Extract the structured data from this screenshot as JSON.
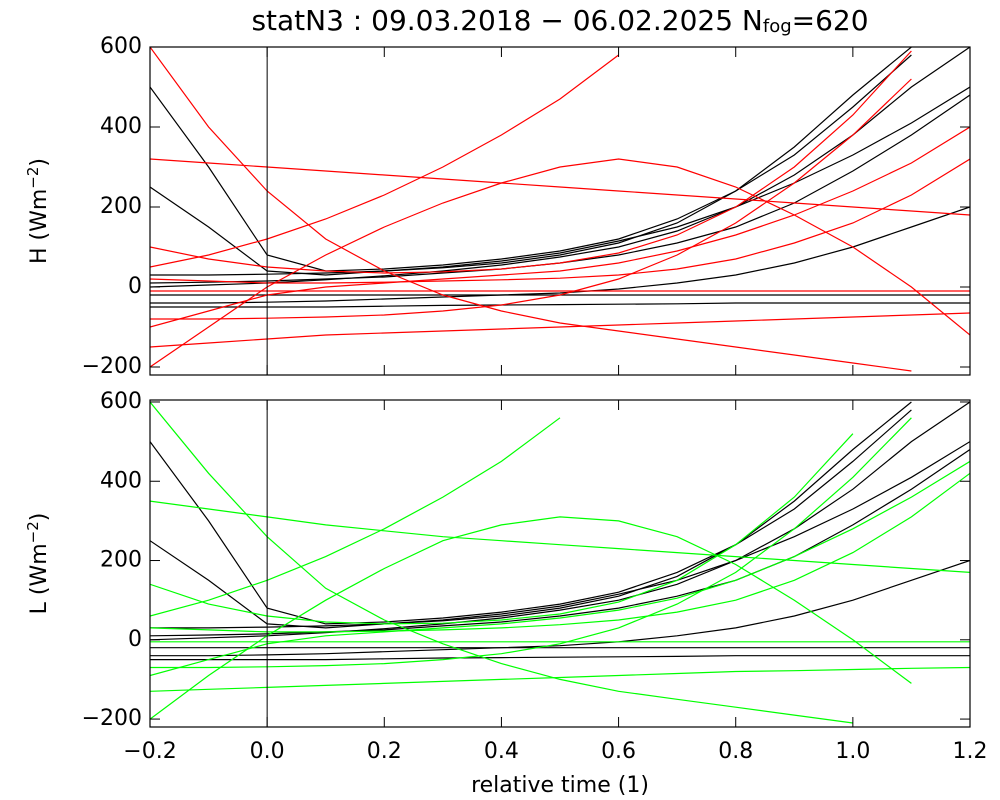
{
  "title": {
    "text": "statN3 : 09.03.2018 − 06.02.2025 N",
    "sub": "fog",
    "tail": "=620"
  },
  "chart_data": [
    {
      "type": "line",
      "ylabel": {
        "text": "H (Wm",
        "sup": "−2",
        "tail": ")"
      },
      "xlim": [
        -0.2,
        1.2
      ],
      "ylim": [
        -220,
        600
      ],
      "vline": 0,
      "yticks": [
        {
          "value": -200,
          "label": "−200"
        },
        0,
        200,
        400,
        600
      ],
      "x": [
        -0.2,
        -0.1,
        0,
        0.1,
        0.2,
        0.3,
        0.4,
        0.5,
        0.6,
        0.7,
        0.8,
        0.9,
        1.0,
        1.1,
        1.2
      ],
      "series": [
        {
          "color": "#000000",
          "values": [
            -40,
            -40,
            -38,
            -35,
            -30,
            -25,
            -20,
            -15,
            -5,
            10,
            30,
            60,
            100,
            150,
            200
          ]
        },
        {
          "color": "#000000",
          "values": [
            10,
            12,
            15,
            20,
            25,
            35,
            45,
            60,
            80,
            110,
            150,
            210,
            290,
            380,
            480
          ]
        },
        {
          "color": "#000000",
          "values": [
            0,
            5,
            10,
            18,
            28,
            40,
            55,
            75,
            100,
            140,
            200,
            280,
            380,
            500,
            600
          ]
        },
        {
          "color": "#000000",
          "values": [
            -50,
            -50,
            -50,
            -50,
            -48,
            -46,
            -45,
            -44,
            -43,
            -42,
            -40,
            -40,
            -40,
            -40,
            -40
          ]
        },
        {
          "color": "#000000",
          "values": [
            500,
            300,
            80,
            40,
            45,
            55,
            70,
            90,
            120,
            170,
            240,
            330,
            450,
            580,
            null
          ]
        },
        {
          "color": "#000000",
          "values": [
            30,
            30,
            32,
            35,
            40,
            48,
            60,
            80,
            110,
            160,
            240,
            350,
            480,
            600,
            null
          ]
        },
        {
          "color": "#000000",
          "values": [
            -20,
            -20,
            -20,
            -20,
            -20,
            -20,
            -20,
            -20,
            -20,
            -20,
            -20,
            -20,
            -20,
            -20,
            -20
          ]
        },
        {
          "color": "#000000",
          "values": [
            250,
            150,
            40,
            30,
            40,
            50,
            65,
            85,
            115,
            150,
            200,
            260,
            330,
            410,
            500
          ]
        },
        {
          "color": "#ff0000",
          "values": [
            -100,
            -60,
            -20,
            0,
            10,
            20,
            30,
            40,
            60,
            90,
            130,
            180,
            240,
            310,
            400
          ]
        },
        {
          "color": "#ff0000",
          "values": [
            20,
            15,
            10,
            10,
            12,
            15,
            18,
            22,
            30,
            45,
            70,
            110,
            160,
            230,
            320
          ]
        },
        {
          "color": "#ff0000",
          "values": [
            -150,
            -140,
            -130,
            -120,
            -115,
            -110,
            -105,
            -100,
            -95,
            -90,
            -85,
            -80,
            -75,
            -70,
            -65
          ]
        },
        {
          "color": "#ff0000",
          "values": [
            600,
            400,
            240,
            120,
            40,
            -20,
            -60,
            -90,
            -110,
            -130,
            -150,
            -170,
            -190,
            -210,
            null
          ]
        },
        {
          "color": "#ff0000",
          "values": [
            100,
            70,
            50,
            40,
            35,
            38,
            45,
            60,
            85,
            130,
            200,
            300,
            430,
            590,
            null
          ]
        },
        {
          "color": "#ff0000",
          "values": [
            -10,
            -10,
            -10,
            -10,
            -10,
            -10,
            -10,
            -10,
            -10,
            -10,
            -10,
            -10,
            -10,
            -10,
            -10
          ]
        },
        {
          "color": "#ff0000",
          "values": [
            -200,
            -100,
            0,
            80,
            150,
            210,
            260,
            300,
            320,
            300,
            250,
            180,
            100,
            0,
            -120
          ]
        },
        {
          "color": "#ff0000",
          "values": [
            50,
            80,
            120,
            170,
            230,
            300,
            380,
            470,
            580,
            null,
            null,
            null,
            null,
            null,
            null
          ]
        },
        {
          "color": "#ff0000",
          "values": [
            320,
            310,
            300,
            290,
            280,
            270,
            260,
            250,
            240,
            230,
            220,
            210,
            200,
            190,
            180
          ]
        },
        {
          "color": "#ff0000",
          "values": [
            -80,
            -80,
            -78,
            -75,
            -70,
            -60,
            -45,
            -20,
            20,
            80,
            160,
            260,
            380,
            520,
            null
          ]
        }
      ]
    },
    {
      "type": "line",
      "ylabel": {
        "text": "L (Wm",
        "sup": "−2",
        "tail": ")"
      },
      "xlim": [
        -0.2,
        1.2
      ],
      "ylim": [
        -220,
        605
      ],
      "vline": 0,
      "xlabel": "relative time (1)",
      "xticks": [
        {
          "value": -0.2,
          "label": "−0.2"
        },
        {
          "value": 0,
          "label": "0.0"
        },
        0.2,
        0.4,
        0.6,
        0.8,
        {
          "value": 1,
          "label": "1.0"
        },
        1.2
      ],
      "yticks": [
        {
          "value": -200,
          "label": "−200"
        },
        0,
        200,
        400,
        600
      ],
      "x": [
        -0.2,
        -0.1,
        0,
        0.1,
        0.2,
        0.3,
        0.4,
        0.5,
        0.6,
        0.7,
        0.8,
        0.9,
        1.0,
        1.1,
        1.2
      ],
      "series": [
        {
          "color": "#000000",
          "values": [
            -40,
            -40,
            -38,
            -35,
            -30,
            -25,
            -20,
            -15,
            -5,
            10,
            30,
            60,
            100,
            150,
            200
          ]
        },
        {
          "color": "#000000",
          "values": [
            10,
            12,
            15,
            20,
            25,
            35,
            45,
            60,
            80,
            110,
            150,
            210,
            290,
            380,
            480
          ]
        },
        {
          "color": "#000000",
          "values": [
            0,
            5,
            10,
            18,
            28,
            40,
            55,
            75,
            100,
            140,
            200,
            280,
            380,
            500,
            600
          ]
        },
        {
          "color": "#000000",
          "values": [
            -50,
            -50,
            -50,
            -50,
            -48,
            -46,
            -45,
            -44,
            -43,
            -42,
            -40,
            -40,
            -40,
            -40,
            -40
          ]
        },
        {
          "color": "#000000",
          "values": [
            500,
            300,
            80,
            40,
            45,
            55,
            70,
            90,
            120,
            170,
            240,
            330,
            450,
            580,
            null
          ]
        },
        {
          "color": "#000000",
          "values": [
            30,
            30,
            32,
            35,
            40,
            48,
            60,
            80,
            110,
            160,
            240,
            350,
            480,
            600,
            null
          ]
        },
        {
          "color": "#000000",
          "values": [
            -20,
            -20,
            -20,
            -20,
            -20,
            -20,
            -20,
            -20,
            -20,
            -20,
            -20,
            -20,
            -20,
            -20,
            -20
          ]
        },
        {
          "color": "#000000",
          "values": [
            250,
            150,
            40,
            30,
            40,
            50,
            65,
            85,
            115,
            150,
            200,
            260,
            330,
            410,
            500
          ]
        },
        {
          "color": "#00ff00",
          "values": [
            -90,
            -50,
            -10,
            10,
            20,
            30,
            40,
            55,
            75,
            105,
            150,
            210,
            280,
            360,
            450
          ]
        },
        {
          "color": "#00ff00",
          "values": [
            30,
            25,
            20,
            20,
            22,
            25,
            30,
            38,
            50,
            70,
            100,
            150,
            220,
            310,
            420
          ]
        },
        {
          "color": "#00ff00",
          "values": [
            -130,
            -125,
            -120,
            -115,
            -110,
            -105,
            -100,
            -95,
            -90,
            -85,
            -80,
            -78,
            -75,
            -72,
            -70
          ]
        },
        {
          "color": "#00ff00",
          "values": [
            600,
            420,
            260,
            130,
            50,
            -10,
            -60,
            -100,
            -130,
            -150,
            -170,
            -190,
            -210,
            null,
            null
          ]
        },
        {
          "color": "#00ff00",
          "values": [
            140,
            90,
            60,
            45,
            40,
            42,
            50,
            65,
            95,
            150,
            240,
            360,
            520,
            null,
            null
          ]
        },
        {
          "color": "#00ff00",
          "values": [
            -5,
            -5,
            -5,
            -5,
            -5,
            -5,
            -5,
            -5,
            -5,
            -5,
            -5,
            -5,
            -5,
            -5,
            -5
          ]
        },
        {
          "color": "#00ff00",
          "values": [
            -200,
            -90,
            10,
            100,
            180,
            250,
            290,
            310,
            300,
            260,
            190,
            100,
            0,
            -110,
            null
          ]
        },
        {
          "color": "#00ff00",
          "values": [
            60,
            100,
            150,
            210,
            280,
            360,
            450,
            560,
            null,
            null,
            null,
            null,
            null,
            null,
            null
          ]
        },
        {
          "color": "#00ff00",
          "values": [
            350,
            330,
            310,
            290,
            275,
            260,
            250,
            240,
            230,
            220,
            210,
            200,
            190,
            180,
            170
          ]
        },
        {
          "color": "#00ff00",
          "values": [
            -70,
            -70,
            -68,
            -65,
            -60,
            -50,
            -35,
            -10,
            30,
            90,
            170,
            280,
            410,
            560,
            null
          ]
        }
      ]
    }
  ]
}
